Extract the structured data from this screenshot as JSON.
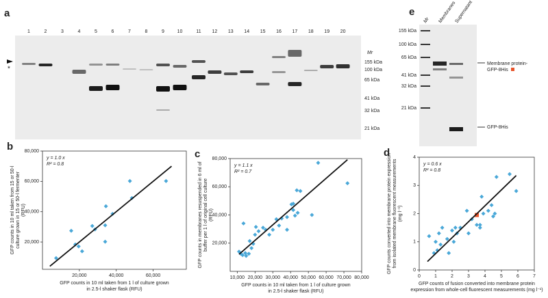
{
  "gel_a": {
    "panel": "a",
    "lanes": [
      "1",
      "2",
      "3",
      "4",
      "5",
      "6",
      "7",
      "8",
      "9",
      "10",
      "11",
      "12",
      "13",
      "14",
      "15",
      "16",
      "17",
      "18",
      "19",
      "20"
    ],
    "marker_title": "Mr",
    "markers": [
      "155 kDa",
      "100 kDa",
      "65 kDa",
      "41 kDa",
      "32 kDa",
      "21 kDa"
    ],
    "star": "*"
  },
  "gel_e": {
    "panel": "e",
    "lanes": [
      "Mr",
      "Membranes",
      "Supernatant"
    ],
    "markers": [
      "155 kDa",
      "100 kDa",
      "65 kDa",
      "41 kDa",
      "32 kDa",
      "21 kDa"
    ],
    "annotations": [
      "Membrane protein-",
      "GFP-8His",
      "GFP-8His"
    ]
  },
  "chart_data": [
    {
      "type": "scatter",
      "panel": "b",
      "color": "#4aa8d8",
      "line_color": "#111111",
      "xlabel": [
        "GFP counts in 10 ml taken from 1 l of culture grown",
        "in 2.5-l shaker flask (RFU)"
      ],
      "ylabel": [
        "GFP counts in 10 ml taken from 15 or 50-l",
        "culture grown in 15 or 50-l fermenter",
        "(RFU)"
      ],
      "annotations": [
        "y = 1.0 x",
        "R² = 0.8"
      ],
      "xlim": [
        0,
        78000
      ],
      "ylim": [
        2000,
        80000
      ],
      "xticks": [
        {
          "value": 20000,
          "label": "20,000"
        },
        {
          "value": 40000,
          "label": "40,000"
        },
        {
          "value": 60000,
          "label": "60,000"
        }
      ],
      "yticks": [
        {
          "value": 20000,
          "label": "20,000"
        },
        {
          "value": 40000,
          "label": "40,000"
        },
        {
          "value": 60000,
          "label": "60,000"
        },
        {
          "value": 80000,
          "label": "80,000"
        }
      ],
      "x": [
        7400,
        15600,
        17800,
        19600,
        21500,
        27000,
        28500,
        34000,
        34400,
        34000,
        38000,
        47400,
        48500,
        67000
      ],
      "y": [
        9400,
        27400,
        18400,
        17100,
        13900,
        30600,
        28300,
        31000,
        43600,
        20200,
        38600,
        60200,
        49000,
        60200
      ],
      "fit": {
        "x": [
          4000,
          70000
        ],
        "y": [
          4000,
          70000
        ]
      }
    },
    {
      "type": "scatter",
      "panel": "c",
      "color": "#4aa8d8",
      "line_color": "#111111",
      "xlabel": [
        "GFP counts in 10 ml taken from 1 l of culture grown",
        "in 2.5-l shaker flask (RFU)"
      ],
      "ylabel": [
        "GFP counts in membranes resuspended in 6 ml of",
        "buffer per 1 l of original cell culture",
        "(RFU)"
      ],
      "annotations": [
        "y = 1.1 x",
        "R² = 0.7"
      ],
      "xlim": [
        6000,
        80000
      ],
      "ylim": [
        0,
        80000
      ],
      "xticks": [
        {
          "value": 10000,
          "label": "10,000"
        },
        {
          "value": 20000,
          "label": "20,000"
        },
        {
          "value": 30000,
          "label": "30,000"
        },
        {
          "value": 40000,
          "label": "40,000"
        },
        {
          "value": 50000,
          "label": "50,000"
        },
        {
          "value": 60000,
          "label": "60,000"
        },
        {
          "value": 70000,
          "label": "70,000"
        },
        {
          "value": 80000,
          "label": "80,000"
        }
      ],
      "yticks": [
        {
          "value": 20000,
          "label": "20,000"
        },
        {
          "value": 40000,
          "label": "40,000"
        },
        {
          "value": 60000,
          "label": "60,000"
        },
        {
          "value": 80000,
          "label": "80,000"
        }
      ],
      "x": [
        11000,
        12000,
        13000,
        14500,
        15000,
        13500,
        16500,
        18000,
        17000,
        19000,
        20000,
        22000,
        20500,
        24500,
        26000,
        28000,
        30000,
        32000,
        33500,
        35000,
        38000,
        38000,
        40500,
        41500,
        42500,
        44000,
        41500,
        43500,
        45500,
        52000,
        55500,
        72000
      ],
      "y": [
        14000,
        12500,
        11500,
        13000,
        11000,
        34000,
        12500,
        16500,
        21500,
        19500,
        26000,
        28500,
        31500,
        31000,
        29500,
        26000,
        29500,
        37000,
        32500,
        37500,
        38500,
        29500,
        47500,
        43500,
        39500,
        41500,
        48000,
        57500,
        57000,
        40000,
        77000,
        62500
      ],
      "fit": {
        "x": [
          11000,
          72000
        ],
        "y": [
          12100,
          79200
        ]
      }
    },
    {
      "type": "scatter",
      "panel": "d",
      "color": "#4aa8d8",
      "line_color": "#111111",
      "xlabel": [
        "GFP counts of fusion converted into membrane protein",
        "expression from whole-cell fluorescent measurements (mg l⁻¹)"
      ],
      "ylabel": [
        "GFP counts converted into membrane protein expression",
        "from isolated membrane fluorescent measurements",
        "(mg l⁻¹)"
      ],
      "annotations": [
        "y = 0.6 x",
        "R² = 0.8"
      ],
      "xlim": [
        0,
        7
      ],
      "ylim": [
        0,
        4
      ],
      "xticks": [
        0,
        1,
        2,
        3,
        4,
        5,
        6,
        7
      ],
      "yticks": [
        0,
        1,
        2,
        3,
        4
      ],
      "x": [
        0.6,
        0.9,
        1.0,
        1.1,
        1.2,
        1.3,
        1.4,
        1.7,
        1.8,
        2.0,
        2.1,
        2.2,
        2.3,
        2.5,
        2.9,
        3.0,
        3.2,
        3.5,
        3.7,
        3.7,
        3.8,
        3.9,
        4.2,
        4.4,
        4.5,
        4.6,
        4.7,
        5.5,
        5.9
      ],
      "y": [
        1.2,
        0.6,
        1.0,
        0.7,
        1.3,
        0.9,
        1.5,
        1.1,
        0.6,
        1.4,
        1.0,
        1.5,
        1.3,
        1.5,
        2.1,
        1.3,
        1.8,
        1.6,
        1.6,
        1.5,
        2.6,
        2.0,
        2.1,
        2.3,
        1.9,
        2.0,
        3.3,
        3.4,
        2.8
      ],
      "highlight": {
        "color": "#e8542a",
        "x": [
          3.5
        ],
        "y": [
          1.95
        ]
      },
      "fit": {
        "x": [
          0.5,
          5.9
        ],
        "y": [
          0.3,
          3.35
        ]
      }
    }
  ]
}
